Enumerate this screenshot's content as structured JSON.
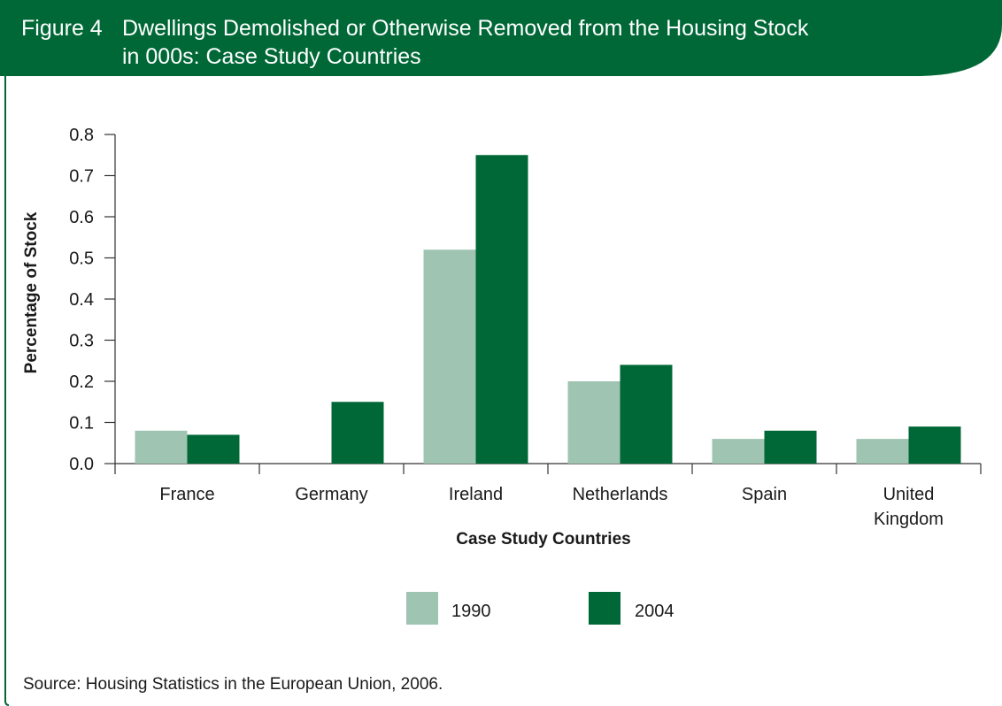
{
  "figure": {
    "number": "Figure 4",
    "title_line1": "Dwellings Demolished or Otherwise Removed from the Housing Stock",
    "title_line2": "in 000s: Case Study Countries",
    "source": "Source: Housing Statistics in the European Union, 2006."
  },
  "colors": {
    "header": "#006837",
    "series_1990": "#9fc4b1",
    "series_2004": "#006837",
    "axis": "#333333"
  },
  "chart_data": {
    "type": "bar",
    "categories": [
      [
        "France"
      ],
      [
        "Germany"
      ],
      [
        "Ireland"
      ],
      [
        "Netherlands"
      ],
      [
        "Spain"
      ],
      [
        "United",
        "Kingdom"
      ]
    ],
    "series": [
      {
        "name": "1990",
        "values": [
          0.08,
          null,
          0.52,
          0.2,
          0.06,
          0.06
        ]
      },
      {
        "name": "2004",
        "values": [
          0.07,
          0.15,
          0.75,
          0.24,
          0.08,
          0.09
        ]
      }
    ],
    "xlabel": "Case Study Countries",
    "ylabel": "Percentage of Stock",
    "ylim": [
      0,
      0.8
    ],
    "yticks": [
      "0.0",
      "0.1",
      "0.2",
      "0.3",
      "0.4",
      "0.5",
      "0.6",
      "0.7",
      "0.8"
    ],
    "grid": false,
    "legend_position": "bottom"
  }
}
